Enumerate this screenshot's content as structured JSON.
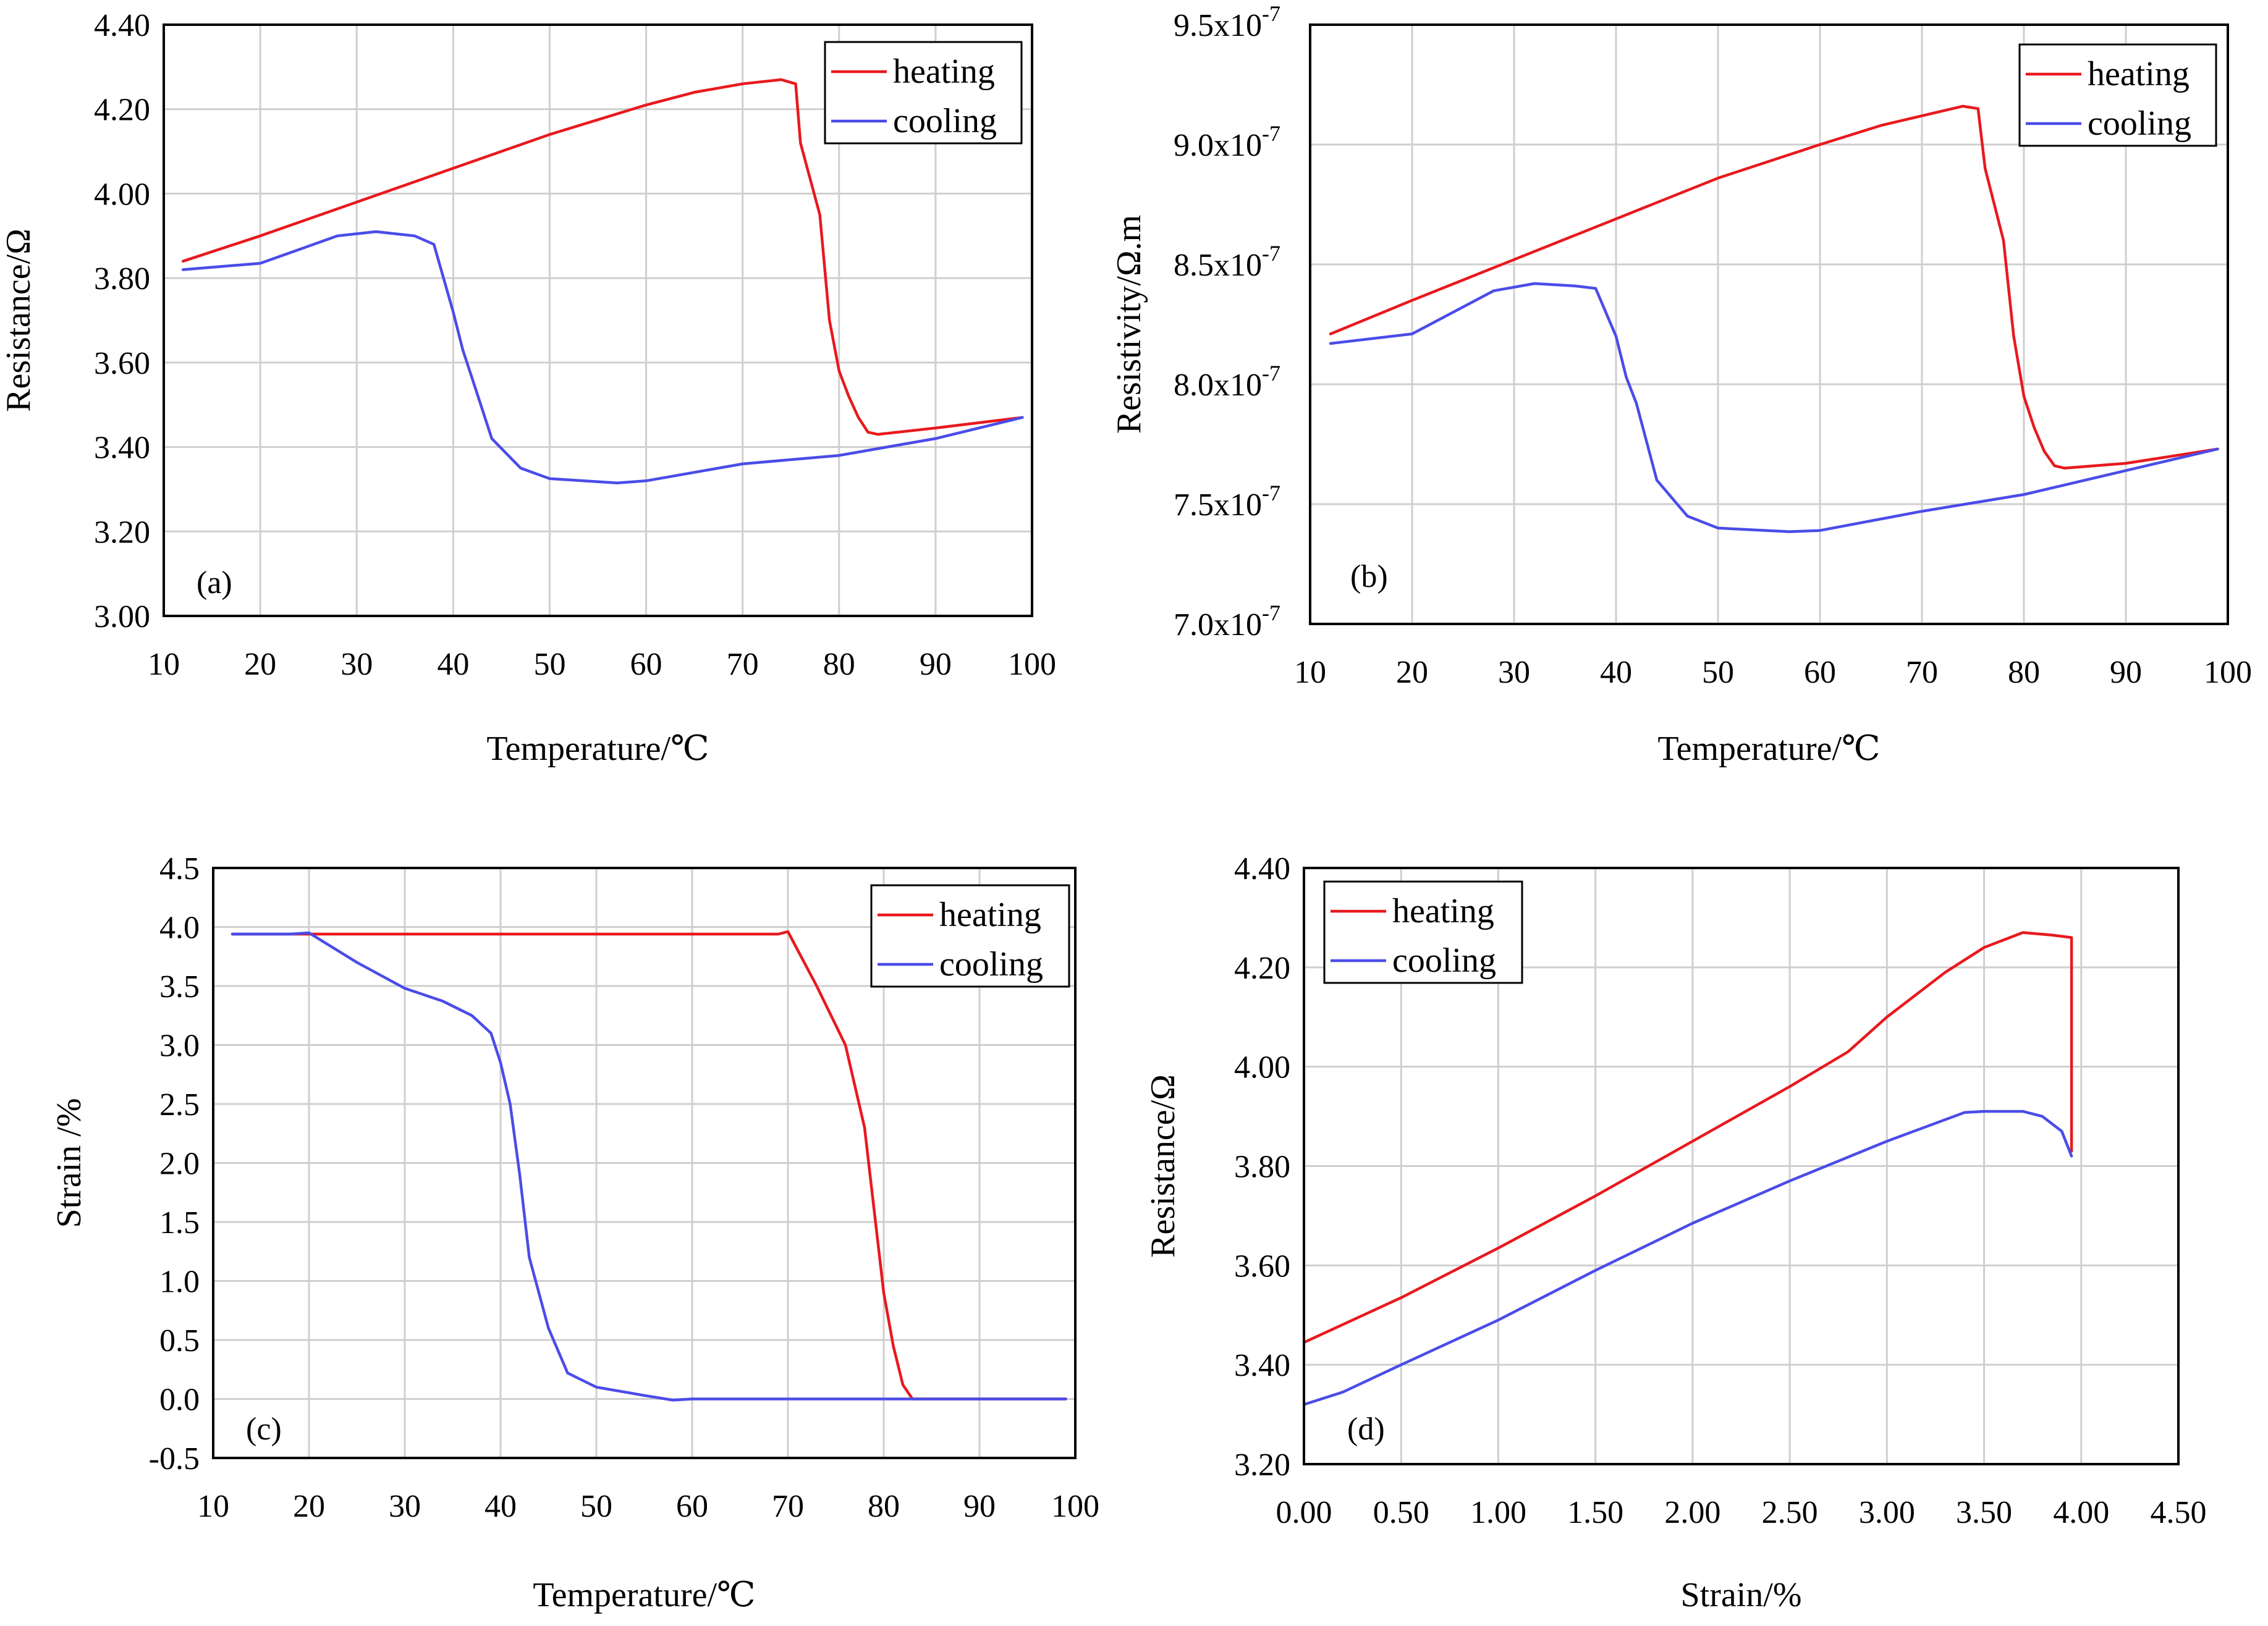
{
  "chart_data": [
    {
      "type": "line",
      "panel_label": "(a)",
      "xlabel": "Temperature/℃",
      "ylabel": "Resistance/Ω",
      "xlim": [
        10,
        100
      ],
      "ylim": [
        3.0,
        4.4
      ],
      "xticks": [
        10,
        20,
        30,
        40,
        50,
        60,
        70,
        80,
        90,
        100
      ],
      "yticks": [
        3.0,
        3.2,
        3.4,
        3.6,
        3.8,
        4.0,
        4.2,
        4.4
      ],
      "xtick_labels": [
        "10",
        "20",
        "30",
        "40",
        "50",
        "60",
        "70",
        "80",
        "90",
        "100"
      ],
      "ytick_labels": [
        "3.00",
        "3.20",
        "3.40",
        "3.60",
        "3.80",
        "4.00",
        "4.20",
        "4.40"
      ],
      "legend_position": "top-right",
      "series": [
        {
          "name": "heating",
          "color": "#e8191e",
          "x": [
            12,
            20,
            30,
            40,
            50,
            60,
            65,
            70,
            74,
            75.5,
            76,
            78,
            79,
            80,
            81,
            82,
            83,
            84,
            90,
            99
          ],
          "y": [
            3.84,
            3.9,
            3.98,
            4.06,
            4.14,
            4.21,
            4.24,
            4.26,
            4.27,
            4.26,
            4.12,
            3.95,
            3.7,
            3.58,
            3.52,
            3.47,
            3.435,
            3.43,
            3.445,
            3.47
          ]
        },
        {
          "name": "cooling",
          "color": "#4a4ce8",
          "x": [
            99,
            90,
            80,
            70,
            60,
            57,
            50,
            47,
            44,
            42,
            41,
            40,
            38,
            36,
            32,
            28,
            20,
            12
          ],
          "y": [
            3.47,
            3.42,
            3.38,
            3.36,
            3.32,
            3.315,
            3.325,
            3.35,
            3.42,
            3.56,
            3.63,
            3.72,
            3.88,
            3.9,
            3.91,
            3.9,
            3.835,
            3.82
          ]
        }
      ]
    },
    {
      "type": "line",
      "panel_label": "(b)",
      "xlabel": "Temperature/℃",
      "ylabel": "Resistivity/Ω.m",
      "xlim": [
        10,
        100
      ],
      "ylim": [
        7.0,
        9.5
      ],
      "y_scale_note": "values in units of 1e-7",
      "xticks": [
        10,
        20,
        30,
        40,
        50,
        60,
        70,
        80,
        90,
        100
      ],
      "yticks": [
        7.0,
        7.5,
        8.0,
        8.5,
        9.0,
        9.5
      ],
      "xtick_labels": [
        "10",
        "20",
        "30",
        "40",
        "50",
        "60",
        "70",
        "80",
        "90",
        "100"
      ],
      "ytick_labels": [
        "7.0x10",
        "7.5x10",
        "8.0x10",
        "8.5x10",
        "9.0x10",
        "9.5x10"
      ],
      "ytick_exponent": "-7",
      "legend_position": "top-right",
      "series": [
        {
          "name": "heating",
          "color": "#e8191e",
          "x": [
            12,
            20,
            30,
            40,
            50,
            60,
            66,
            70,
            74,
            75.5,
            76.2,
            78,
            79,
            80,
            81,
            82,
            83,
            84,
            90,
            99
          ],
          "y": [
            8.21,
            8.35,
            8.52,
            8.69,
            8.86,
            9.0,
            9.08,
            9.12,
            9.16,
            9.15,
            8.9,
            8.6,
            8.2,
            7.95,
            7.82,
            7.72,
            7.66,
            7.65,
            7.67,
            7.73
          ]
        },
        {
          "name": "cooling",
          "color": "#4a4ce8",
          "x": [
            99,
            90,
            80,
            70,
            60,
            57,
            50,
            47,
            44,
            42,
            41,
            40,
            38,
            36,
            32,
            28,
            20,
            12
          ],
          "y": [
            7.73,
            7.64,
            7.54,
            7.47,
            7.39,
            7.385,
            7.4,
            7.45,
            7.6,
            7.92,
            8.03,
            8.2,
            8.4,
            8.41,
            8.42,
            8.39,
            8.21,
            8.17
          ]
        }
      ]
    },
    {
      "type": "line",
      "panel_label": "(c)",
      "xlabel": "Temperature/℃",
      "ylabel": "Strain /%",
      "xlim": [
        10,
        100
      ],
      "ylim": [
        -0.5,
        4.5
      ],
      "xticks": [
        10,
        20,
        30,
        40,
        50,
        60,
        70,
        80,
        90,
        100
      ],
      "yticks": [
        -0.5,
        0.0,
        0.5,
        1.0,
        1.5,
        2.0,
        2.5,
        3.0,
        3.5,
        4.0,
        4.5
      ],
      "xtick_labels": [
        "10",
        "20",
        "30",
        "40",
        "50",
        "60",
        "70",
        "80",
        "90",
        "100"
      ],
      "ytick_labels": [
        "-0.5",
        "0.0",
        "0.5",
        "1.0",
        "1.5",
        "2.0",
        "2.5",
        "3.0",
        "3.5",
        "4.0",
        "4.5"
      ],
      "legend_position": "top-right",
      "series": [
        {
          "name": "heating",
          "color": "#e8191e",
          "x": [
            12,
            20,
            40,
            60,
            69,
            70,
            73,
            76,
            78,
            79,
            80,
            81,
            82,
            83,
            84,
            90,
            99
          ],
          "y": [
            3.94,
            3.94,
            3.94,
            3.94,
            3.94,
            3.96,
            3.5,
            3.0,
            2.3,
            1.6,
            0.9,
            0.45,
            0.12,
            0.0,
            0.0,
            0.0,
            0.0
          ]
        },
        {
          "name": "cooling",
          "color": "#4a4ce8",
          "x": [
            99,
            90,
            80,
            70,
            60,
            58,
            55,
            50,
            47,
            45,
            43,
            42,
            41,
            40,
            39,
            37,
            34,
            30,
            25,
            20,
            18,
            12
          ],
          "y": [
            0.0,
            0.0,
            0.0,
            0.0,
            0.0,
            -0.01,
            0.03,
            0.1,
            0.22,
            0.6,
            1.2,
            1.9,
            2.5,
            2.85,
            3.1,
            3.25,
            3.37,
            3.48,
            3.7,
            3.95,
            3.94,
            3.94
          ]
        }
      ]
    },
    {
      "type": "line",
      "panel_label": "(d)",
      "xlabel": "Strain/%",
      "ylabel": "Resistance/Ω",
      "xlim": [
        0,
        4.5
      ],
      "ylim": [
        3.2,
        4.4
      ],
      "xticks": [
        0,
        0.5,
        1.0,
        1.5,
        2.0,
        2.5,
        3.0,
        3.5,
        4.0,
        4.5
      ],
      "yticks": [
        3.2,
        3.4,
        3.6,
        3.8,
        4.0,
        4.2,
        4.4
      ],
      "xtick_labels": [
        "0.00",
        "0.50",
        "1.00",
        "1.50",
        "2.00",
        "2.50",
        "3.00",
        "3.50",
        "4.00",
        "4.50"
      ],
      "ytick_labels": [
        "3.20",
        "3.40",
        "3.60",
        "3.80",
        "4.00",
        "4.20",
        "4.40"
      ],
      "legend_position": "top-left",
      "series": [
        {
          "name": "heating",
          "color": "#e8191e",
          "x": [
            0,
            0.5,
            1.0,
            1.5,
            2.0,
            2.5,
            2.8,
            3.0,
            3.3,
            3.5,
            3.7,
            3.85,
            3.95,
            3.95
          ],
          "y": [
            3.445,
            3.535,
            3.635,
            3.74,
            3.85,
            3.96,
            4.03,
            4.1,
            4.19,
            4.24,
            4.27,
            4.265,
            4.26,
            3.83
          ]
        },
        {
          "name": "cooling",
          "color": "#4a4ce8",
          "x": [
            3.95,
            3.9,
            3.8,
            3.7,
            3.5,
            3.4,
            3.0,
            2.5,
            2.0,
            1.5,
            1.0,
            0.5,
            0.2,
            0
          ],
          "y": [
            3.82,
            3.87,
            3.9,
            3.91,
            3.91,
            3.908,
            3.85,
            3.77,
            3.685,
            3.59,
            3.49,
            3.4,
            3.345,
            3.32
          ]
        }
      ]
    }
  ]
}
